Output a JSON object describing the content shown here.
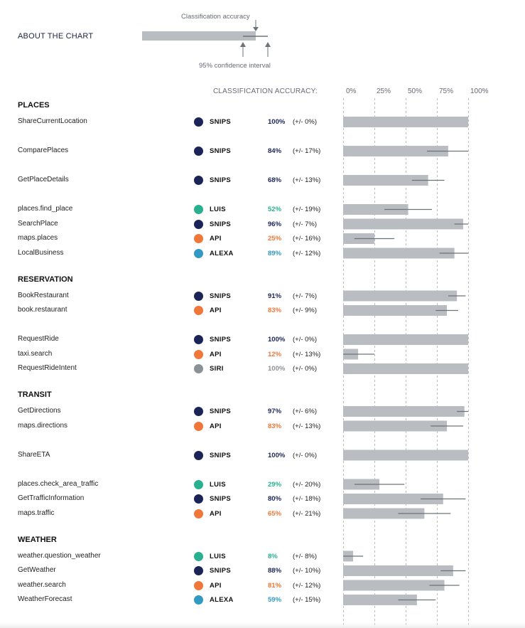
{
  "about": {
    "title": "ABOUT THE CHART",
    "legend_accuracy_label": "Classification accuracy",
    "legend_ci_label": "95% confidence interval"
  },
  "colors": {
    "SNIPS": "#1b2456",
    "LUIS": "#29b08f",
    "API": "#f0773a",
    "ALEXA": "#3299c2",
    "SIRI": "#8c9196",
    "bar": "#b9bcc1",
    "errorbar": "#6e7378",
    "gridline": "#bbbbbb"
  },
  "chart_data": {
    "type": "bar",
    "orientation": "horizontal",
    "header": "CLASSIFICATION ACCURACY:",
    "xlim": [
      0,
      100
    ],
    "ticks": [
      "0%",
      "25%",
      "50%",
      "75%",
      "100%"
    ],
    "sections": [
      {
        "title": "PLACES",
        "groups": [
          [
            {
              "intent": "ShareCurrentLocation",
              "provider": "SNIPS",
              "accuracy": 100,
              "accuracy_label": "100%",
              "ci": 0,
              "ci_label": "(+/- 0%)"
            }
          ],
          [
            {
              "intent": "ComparePlaces",
              "provider": "SNIPS",
              "accuracy": 84,
              "accuracy_label": "84%",
              "ci": 17,
              "ci_label": "(+/- 17%)"
            }
          ],
          [
            {
              "intent": "GetPlaceDetails",
              "provider": "SNIPS",
              "accuracy": 68,
              "accuracy_label": "68%",
              "ci": 13,
              "ci_label": "(+/- 13%)"
            }
          ],
          [
            {
              "intent": "places.find_place",
              "provider": "LUIS",
              "accuracy": 52,
              "accuracy_label": "52%",
              "ci": 19,
              "ci_label": "(+/- 19%)"
            },
            {
              "intent": "SearchPlace",
              "provider": "SNIPS",
              "accuracy": 96,
              "accuracy_label": "96%",
              "ci": 7,
              "ci_label": "(+/- 7%)"
            },
            {
              "intent": "maps.places",
              "provider": "API",
              "accuracy": 25,
              "accuracy_label": "25%",
              "ci": 16,
              "ci_label": "(+/- 16%)"
            },
            {
              "intent": "LocalBusiness",
              "provider": "ALEXA",
              "accuracy": 89,
              "accuracy_label": "89%",
              "ci": 12,
              "ci_label": "(+/- 12%)"
            }
          ]
        ]
      },
      {
        "title": "RESERVATION",
        "groups": [
          [
            {
              "intent": "BookRestaurant",
              "provider": "SNIPS",
              "accuracy": 91,
              "accuracy_label": "91%",
              "ci": 7,
              "ci_label": "(+/- 7%)"
            },
            {
              "intent": "book.restaurant",
              "provider": "API",
              "accuracy": 83,
              "accuracy_label": "83%",
              "ci": 9,
              "ci_label": "(+/- 9%)"
            }
          ],
          [
            {
              "intent": "RequestRide",
              "provider": "SNIPS",
              "accuracy": 100,
              "accuracy_label": "100%",
              "ci": 0,
              "ci_label": "(+/- 0%)"
            },
            {
              "intent": "taxi.search",
              "provider": "API",
              "accuracy": 12,
              "accuracy_label": "12%",
              "ci": 13,
              "ci_label": "(+/- 13%)"
            },
            {
              "intent": "RequestRideIntent",
              "provider": "SIRI",
              "accuracy": 100,
              "accuracy_label": "100%",
              "ci": 0,
              "ci_label": "(+/- 0%)"
            }
          ]
        ]
      },
      {
        "title": "TRANSIT",
        "groups": [
          [
            {
              "intent": "GetDirections",
              "provider": "SNIPS",
              "accuracy": 97,
              "accuracy_label": "97%",
              "ci": 6,
              "ci_label": "(+/- 6%)"
            },
            {
              "intent": "maps.directions",
              "provider": "API",
              "accuracy": 83,
              "accuracy_label": "83%",
              "ci": 13,
              "ci_label": "(+/- 13%)"
            }
          ],
          [
            {
              "intent": "ShareETA",
              "provider": "SNIPS",
              "accuracy": 100,
              "accuracy_label": "100%",
              "ci": 0,
              "ci_label": "(+/- 0%)"
            }
          ],
          [
            {
              "intent": "places.check_area_traffic",
              "provider": "LUIS",
              "accuracy": 29,
              "accuracy_label": "29%",
              "ci": 20,
              "ci_label": "(+/- 20%)"
            },
            {
              "intent": "GetTrafficInformation",
              "provider": "SNIPS",
              "accuracy": 80,
              "accuracy_label": "80%",
              "ci": 18,
              "ci_label": "(+/- 18%)"
            },
            {
              "intent": "maps.traffic",
              "provider": "API",
              "accuracy": 65,
              "accuracy_label": "65%",
              "ci": 21,
              "ci_label": "(+/- 21%)"
            }
          ]
        ]
      },
      {
        "title": "WEATHER",
        "groups": [
          [
            {
              "intent": "weather.question_weather",
              "provider": "LUIS",
              "accuracy": 8,
              "accuracy_label": "8%",
              "ci": 8,
              "ci_label": "(+/- 8%)"
            },
            {
              "intent": "GetWeather",
              "provider": "SNIPS",
              "accuracy": 88,
              "accuracy_label": "88%",
              "ci": 10,
              "ci_label": "(+/- 10%)"
            },
            {
              "intent": "weather.search",
              "provider": "API",
              "accuracy": 81,
              "accuracy_label": "81%",
              "ci": 12,
              "ci_label": "(+/- 12%)"
            },
            {
              "intent": "WeatherForecast",
              "provider": "ALEXA",
              "accuracy": 59,
              "accuracy_label": "59%",
              "ci": 15,
              "ci_label": "(+/- 15%)"
            }
          ]
        ]
      }
    ]
  }
}
